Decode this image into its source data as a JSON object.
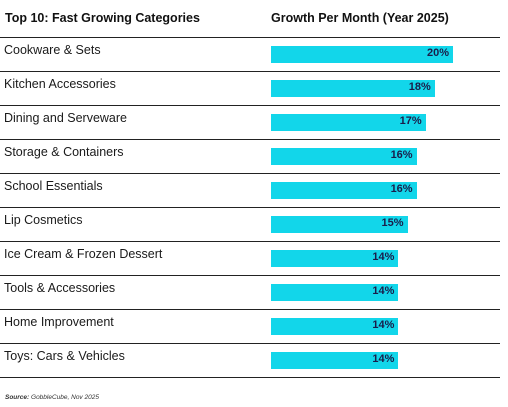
{
  "header": {
    "category_title": "Top 10: Fast Growing Categories",
    "value_title": "Growth Per Month (Year 2025)"
  },
  "colors": {
    "bar": "#12d6ea",
    "value_text": "#1a1d4a"
  },
  "chart_data": {
    "type": "bar",
    "orientation": "horizontal",
    "title": "Top 10: Fast Growing Categories",
    "value_label": "Growth Per Month (Year 2025)",
    "categories": [
      "Cookware & Sets",
      "Kitchen Accessories",
      "Dining and Serveware",
      "Storage & Containers",
      "School Essentials",
      "Lip Cosmetics",
      "Ice Cream & Frozen Dessert",
      "Tools & Accessories",
      "Home Improvement",
      "Toys: Cars & Vehicles"
    ],
    "values": [
      20,
      18,
      17,
      16,
      16,
      15,
      14,
      14,
      14,
      14
    ],
    "value_labels": [
      "20%",
      "18%",
      "17%",
      "16%",
      "16%",
      "15%",
      "14%",
      "14%",
      "14%",
      "14%"
    ],
    "unit": "%"
  },
  "footer": {
    "source_label": "Source:",
    "source_text": "GobbleCube, Nov 2025"
  }
}
